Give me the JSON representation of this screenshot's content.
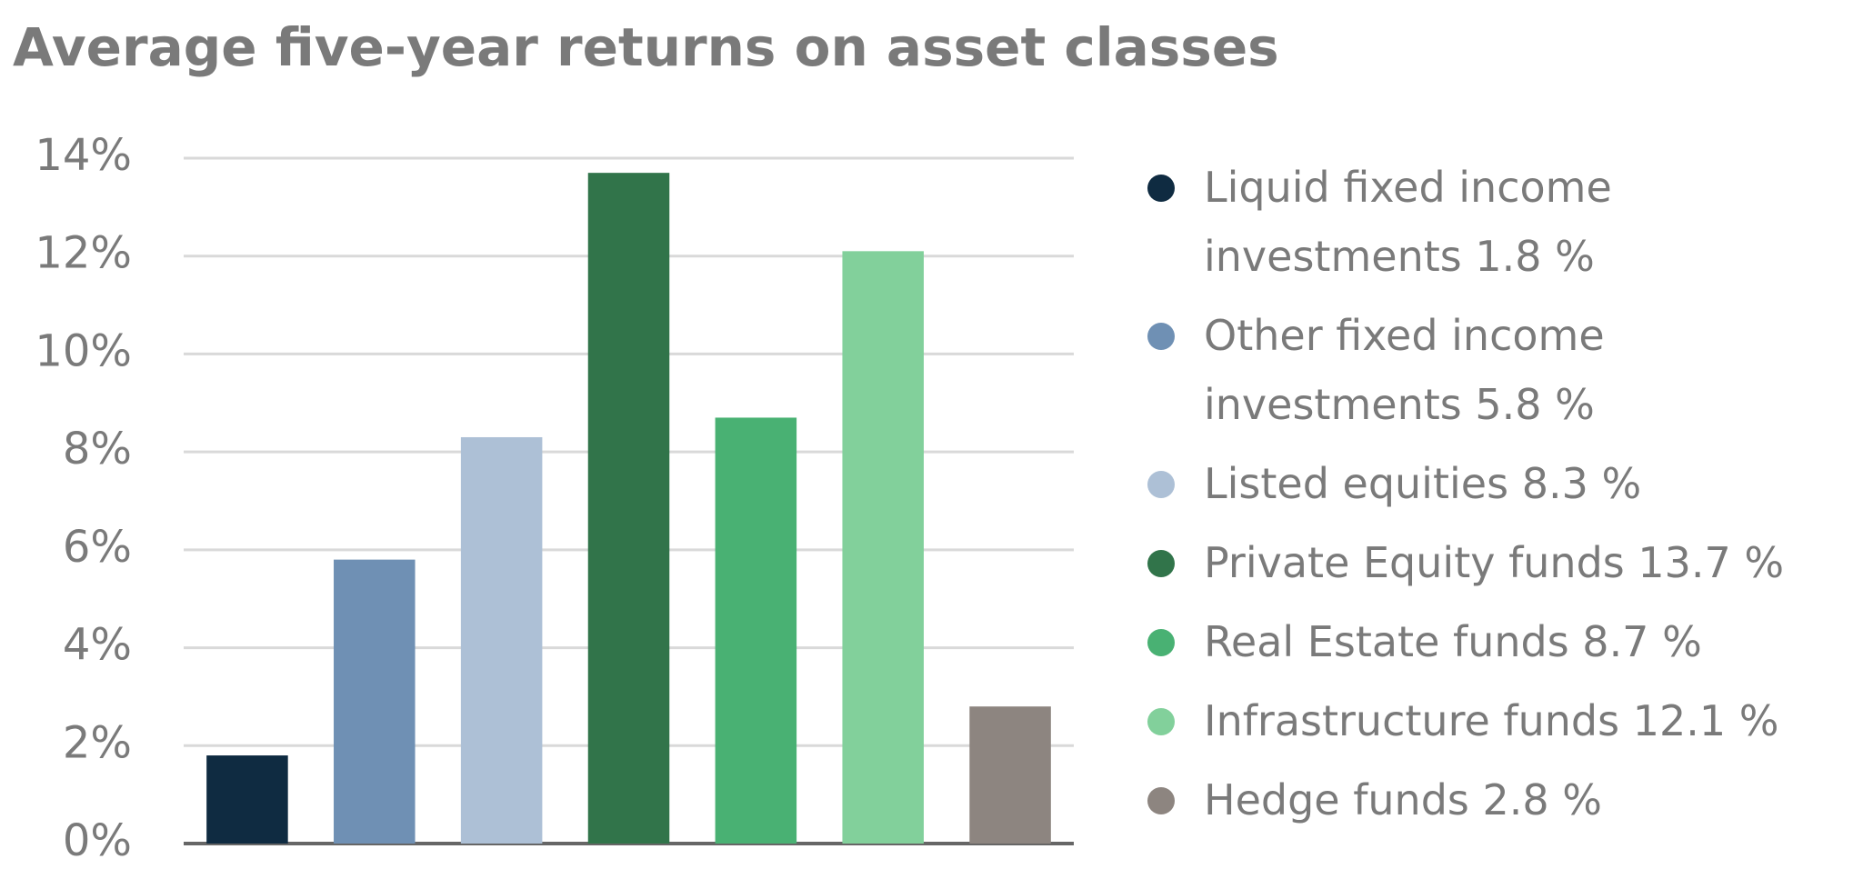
{
  "chart_data": {
    "type": "bar",
    "title": "Average five-year returns on asset classes",
    "categories": [
      "Liquid fixed income investments",
      "Other fixed income investments",
      "Listed equities",
      "Private Equity funds",
      "Real Estate funds",
      "Infrastructure funds",
      "Hedge funds"
    ],
    "values": [
      1.8,
      5.8,
      8.3,
      13.7,
      8.7,
      12.1,
      2.8
    ],
    "value_labels": [
      "1.8 %",
      "5.8 %",
      "8.3 %",
      "13.7 %",
      "8.7 %",
      "12.1 %",
      "2.8 %"
    ],
    "colors": [
      "#0f2b41",
      "#6f90b4",
      "#adc0d6",
      "#31744a",
      "#49b173",
      "#82d09b",
      "#8d8580"
    ],
    "ylim": [
      0,
      14
    ],
    "yticks": [
      {
        "value": 0,
        "label": "0%"
      },
      {
        "value": 2,
        "label": "2%"
      },
      {
        "value": 4,
        "label": "4%"
      },
      {
        "value": 6,
        "label": "6%"
      },
      {
        "value": 8,
        "label": "8%"
      },
      {
        "value": 10,
        "label": "10%"
      },
      {
        "value": 12,
        "label": "12%"
      },
      {
        "value": 14,
        "label": "14%"
      }
    ],
    "grid": true,
    "legend": "right"
  }
}
